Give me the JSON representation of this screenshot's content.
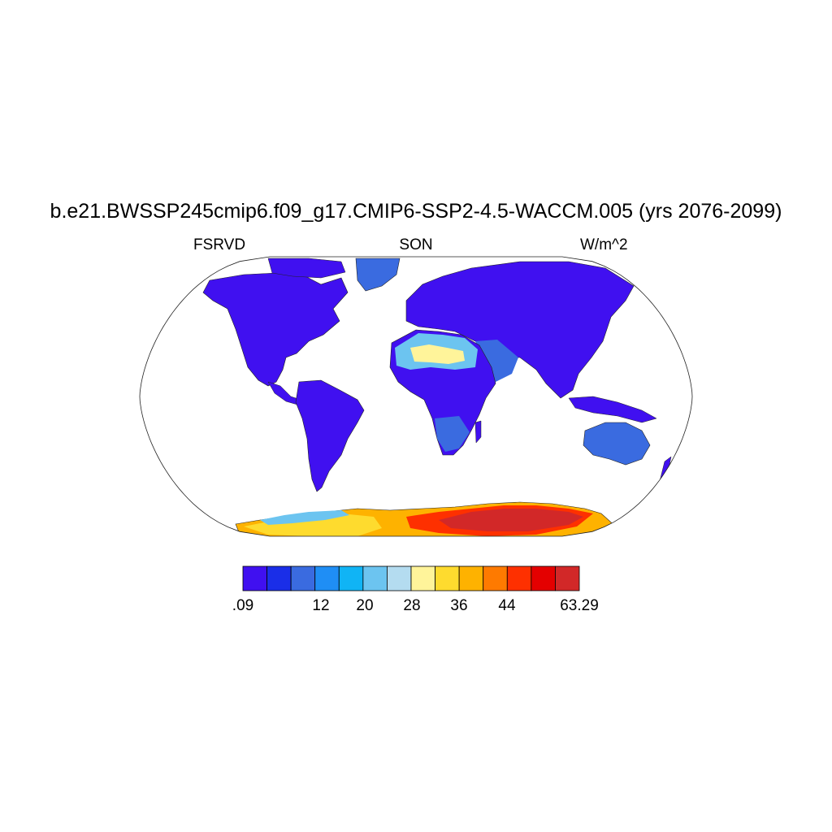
{
  "title": "b.e21.BWSSP245cmip6.f09_g17.CMIP6-SSP2-4.5-WACCM.005 (yrs 2076-2099)",
  "subtitle_left": "FSRVD",
  "subtitle_center": "SON",
  "subtitle_right": "W/m^2",
  "projection": "robinson",
  "colorbar": {
    "colors": [
      "#4010f0",
      "#1a2ee8",
      "#3a6be0",
      "#1f8ef5",
      "#10b4f5",
      "#6cc4f0",
      "#b4dcf0",
      "#fff49a",
      "#fedb2e",
      "#feb200",
      "#fe7a00",
      "#fe3000",
      "#e40000",
      "#d22828"
    ],
    "labels": [
      {
        "text": ".09",
        "boundary": 0
      },
      {
        "text": "12",
        "boundary": 2
      },
      {
        "text": "20",
        "boundary": 3
      },
      {
        "text": "28",
        "boundary": 4
      },
      {
        "text": "36",
        "boundary": 5
      },
      {
        "text": "44",
        "boundary": 6
      },
      {
        "text": "63.29",
        "boundary": 14
      }
    ]
  }
}
